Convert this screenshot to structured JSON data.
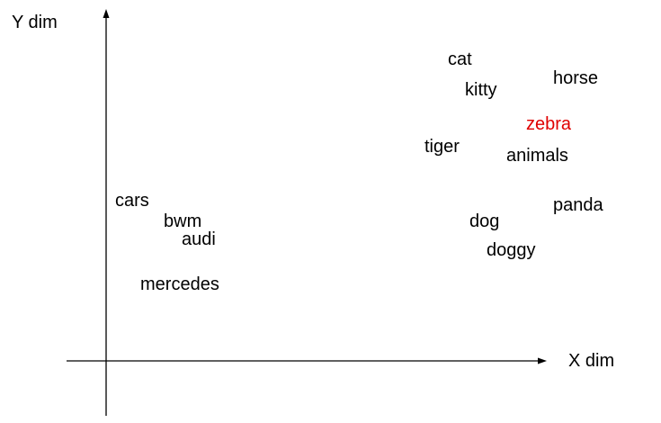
{
  "axes": {
    "y_label": "Y dim",
    "x_label": "X dim"
  },
  "words": [
    {
      "text": "cat",
      "color": "#000000"
    },
    {
      "text": "kitty",
      "color": "#000000"
    },
    {
      "text": "horse",
      "color": "#000000"
    },
    {
      "text": "zebra",
      "color": "#e00000"
    },
    {
      "text": "tiger",
      "color": "#000000"
    },
    {
      "text": "animals",
      "color": "#000000"
    },
    {
      "text": "panda",
      "color": "#000000"
    },
    {
      "text": "dog",
      "color": "#000000"
    },
    {
      "text": "doggy",
      "color": "#000000"
    },
    {
      "text": "cars",
      "color": "#000000"
    },
    {
      "text": "bwm",
      "color": "#000000"
    },
    {
      "text": "audi",
      "color": "#000000"
    },
    {
      "text": "mercedes",
      "color": "#000000"
    }
  ]
}
